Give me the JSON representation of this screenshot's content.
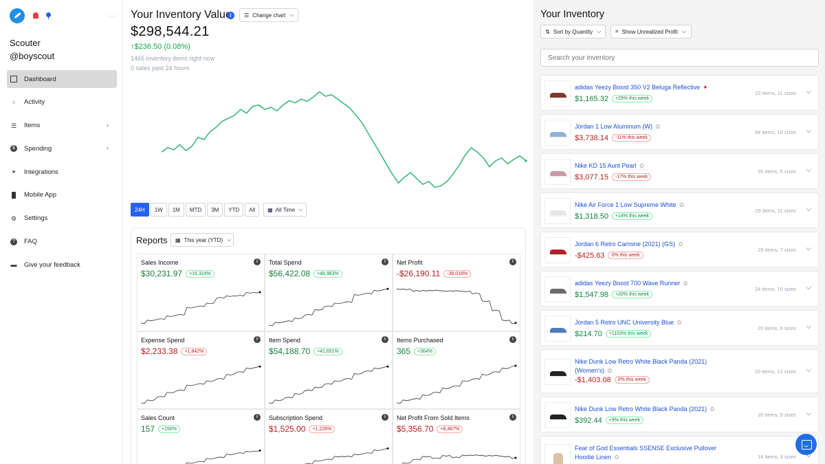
{
  "sidebar": {
    "user_name": "Scouter",
    "user_handle": "@boyscout",
    "items": [
      {
        "label": "Dashboard",
        "icon": "dashboard-icon",
        "active": true
      },
      {
        "label": "Activity",
        "icon": "activity-icon"
      },
      {
        "label": "Items",
        "icon": "items-icon",
        "chevron": true
      },
      {
        "label": "Spending",
        "icon": "dollar-icon",
        "chevron": true
      },
      {
        "label": "Integrations",
        "icon": "link-icon"
      },
      {
        "label": "Mobile App",
        "icon": "phone-icon"
      },
      {
        "label": "Settings",
        "icon": "settings-icon"
      },
      {
        "label": "FAQ",
        "icon": "question-icon"
      },
      {
        "label": "Give your feedback",
        "icon": "feedback-icon"
      }
    ]
  },
  "main": {
    "title": "Your Inventory Value",
    "change_chart_label": "Change chart",
    "value": "$298,544.21",
    "delta": "↑$236.50 (0.08%)",
    "items_now": "1465 inventory items right now",
    "sales_past": "0 sales past 24 hours",
    "ranges": [
      "24H",
      "1W",
      "1M",
      "MTD",
      "3M",
      "YTD",
      "All"
    ],
    "active_range": "24H",
    "all_time_label": "All Time"
  },
  "chart_data": [
    {
      "type": "line",
      "title": "",
      "y": [
        180,
        186,
        183,
        190,
        182,
        188,
        200,
        197,
        208,
        214,
        222,
        226,
        230,
        238,
        233,
        242,
        244,
        238,
        241,
        236,
        244,
        250,
        247,
        252,
        249,
        255,
        262,
        256,
        258,
        252,
        246,
        240,
        230,
        220,
        206,
        192,
        178,
        164,
        150,
        138,
        146,
        152,
        144,
        136,
        140,
        132,
        134,
        140,
        150,
        162,
        176,
        186,
        180,
        172,
        160,
        168,
        172,
        164,
        170,
        175,
        168
      ],
      "color": "#3fb97a"
    }
  ],
  "reports": {
    "title": "Reports",
    "period_label": "This year (YTD)",
    "cards": [
      {
        "label": "Sales Income",
        "value": "$30,231.97",
        "change": "+16,324%",
        "tone": "pos"
      },
      {
        "label": "Total Spend",
        "value": "$56,422.08",
        "change": "+48,963%",
        "tone": "pos"
      },
      {
        "label": "Net Profit",
        "value": "-$26,190.11",
        "change": "-38,018%",
        "tone": "neg"
      },
      {
        "label": "Expense Spend",
        "value": "$2,233.38",
        "change": "+1,842%",
        "tone": "neg"
      },
      {
        "label": "Item Spend",
        "value": "$54,188.70",
        "change": "+41,651%",
        "tone": "pos"
      },
      {
        "label": "Items Purchased",
        "value": "365",
        "change": "+364%",
        "tone": "pos"
      },
      {
        "label": "Sales Count",
        "value": "157",
        "change": "+156%",
        "tone": "pos"
      },
      {
        "label": "Subscription Spend",
        "value": "$1,525.00",
        "change": "+1,226%",
        "tone": "neg"
      },
      {
        "label": "Net Profit From Sold Items",
        "value": "$5,356.70",
        "change": "+8,467%",
        "tone": "neg"
      }
    ]
  },
  "inventory": {
    "title": "Your Inventory",
    "sort_label": "Sort by Quantity",
    "profit_label": "Show Unrealized Profit",
    "search_placeholder": "Search your inventory",
    "items": [
      {
        "name": "adidas Yeezy Boost 350 V2 Beluga Reflective",
        "price": "$1,165.32",
        "change": "+29% this week",
        "tone": "pos",
        "meta": "22 items, 11 sizes",
        "pinned": true,
        "shoe": "#7a3a2c"
      },
      {
        "name": "Jordan 1 Low Aluminum (W)",
        "price": "$3,738.14",
        "change": "-11% this week",
        "tone": "neg",
        "meta": "64 items, 10 sizes",
        "shoe": "#8fb4d6"
      },
      {
        "name": "Nike KD 15 Aunt Pearl",
        "price": "$3,077.15",
        "change": "-17% this week",
        "tone": "neg",
        "meta": "35 items, 5 sizes",
        "shoe": "#c99aa6"
      },
      {
        "name": "Nike Air Force 1 Low Supreme White",
        "price": "$1,318.50",
        "change": "+14% this week",
        "tone": "pos",
        "meta": "29 items, 11 sizes",
        "shoe": "#e7e7e7"
      },
      {
        "name": "Jordan 6 Retro Carmine (2021) (GS)",
        "price": "-$425.63",
        "change": "0% this week",
        "tone": "neg",
        "meta": "29 items, 7 sizes",
        "shoe": "#b3202a"
      },
      {
        "name": "adidas Yeezy Boost 700 Wave Runner",
        "price": "$1,547.98",
        "change": "+20% this week",
        "tone": "pos",
        "meta": "24 items, 10 sizes",
        "shoe": "#6b6b6b"
      },
      {
        "name": "Jordan 5 Retro UNC University Blue",
        "price": "$214.70",
        "change": "+1153% this week",
        "tone": "pos",
        "meta": "20 items, 6 sizes",
        "shoe": "#4a7fb8"
      },
      {
        "name": "Nike Dunk Low Retro White Black Panda (2021) (Women's)",
        "price": "-$1,403.08",
        "change": "0% this week",
        "tone": "neg",
        "meta": "20 items, 12 sizes",
        "shoe": "#222222"
      },
      {
        "name": "Nike Dunk Low Retro White Black Panda (2021)",
        "price": "$392.44",
        "change": "+9% this week",
        "tone": "pos",
        "meta": "20 items, 9 sizes",
        "shoe": "#222222"
      },
      {
        "name": "Fear of God Essentials SSENSE Exclusive Pullover Hoodie Linen",
        "price": "",
        "change": "",
        "tone": "pos",
        "meta": "18 items, 3 sizes",
        "hoodie": true
      }
    ]
  }
}
